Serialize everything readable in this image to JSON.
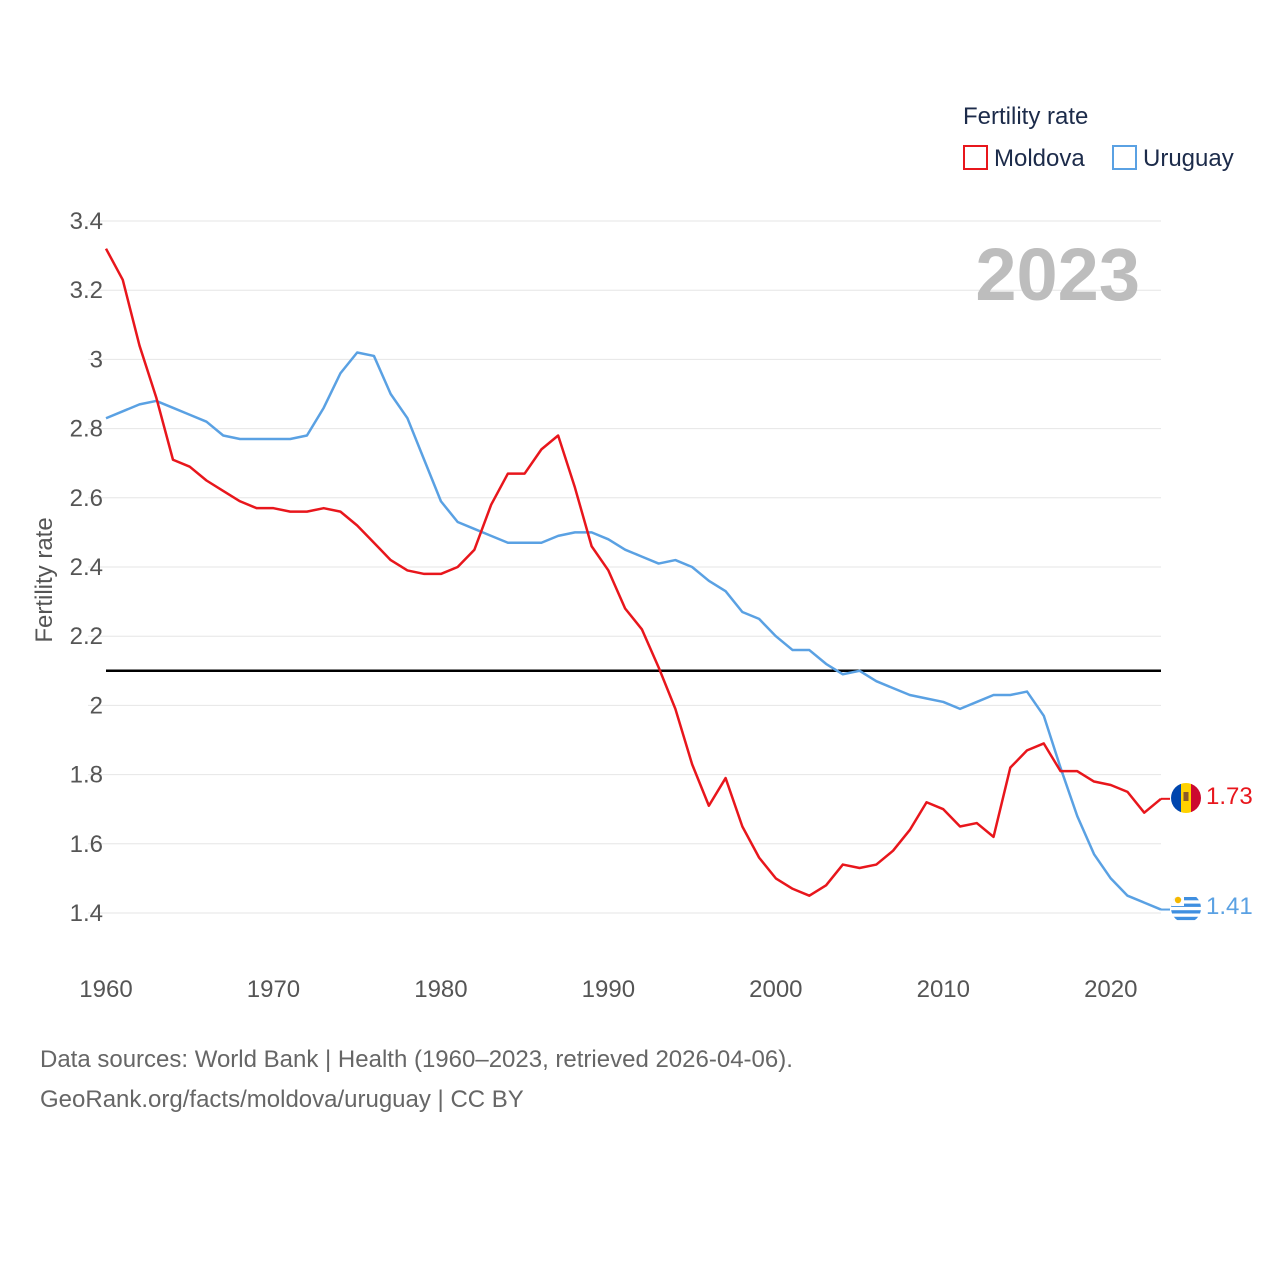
{
  "chart_data": {
    "type": "line",
    "legend_title": "Fertility rate",
    "ylabel": "Fertility rate",
    "xlabel": "",
    "current_year_label": "2023",
    "ylim": [
      1.3,
      3.4
    ],
    "xlim": [
      1960,
      2023
    ],
    "yticks": [
      1.4,
      1.6,
      1.8,
      2,
      2.2,
      2.4,
      2.6,
      2.8,
      3,
      3.2,
      3.4
    ],
    "ytick_labels": [
      "1.4",
      "1.6",
      "1.8",
      "2",
      "2.2",
      "2.4",
      "2.6",
      "2.8",
      "3",
      "3.2",
      "3.4"
    ],
    "xticks": [
      1960,
      1970,
      1980,
      1990,
      2000,
      2010,
      2020
    ],
    "xtick_labels": [
      "1960",
      "1970",
      "1980",
      "1990",
      "2000",
      "2010",
      "2020"
    ],
    "reference_line": {
      "value": 2.1,
      "color": "#000000"
    },
    "x": [
      1960,
      1961,
      1962,
      1963,
      1964,
      1965,
      1966,
      1967,
      1968,
      1969,
      1970,
      1971,
      1972,
      1973,
      1974,
      1975,
      1976,
      1977,
      1978,
      1979,
      1980,
      1981,
      1982,
      1983,
      1984,
      1985,
      1986,
      1987,
      1988,
      1989,
      1990,
      1991,
      1992,
      1993,
      1994,
      1995,
      1996,
      1997,
      1998,
      1999,
      2000,
      2001,
      2002,
      2003,
      2004,
      2005,
      2006,
      2007,
      2008,
      2009,
      2010,
      2011,
      2012,
      2013,
      2014,
      2015,
      2016,
      2017,
      2018,
      2019,
      2020,
      2021,
      2022,
      2023
    ],
    "series": [
      {
        "name": "Moldova",
        "color": "#e8161c",
        "end_label": "1.73",
        "flag": "moldova-flag-icon",
        "values": [
          3.32,
          3.23,
          3.04,
          2.89,
          2.71,
          2.69,
          2.65,
          2.62,
          2.59,
          2.57,
          2.57,
          2.56,
          2.56,
          2.57,
          2.56,
          2.52,
          2.47,
          2.42,
          2.39,
          2.38,
          2.38,
          2.4,
          2.45,
          2.58,
          2.67,
          2.67,
          2.74,
          2.78,
          2.63,
          2.46,
          2.39,
          2.28,
          2.22,
          2.11,
          1.99,
          1.83,
          1.71,
          1.79,
          1.65,
          1.56,
          1.5,
          1.47,
          1.45,
          1.48,
          1.54,
          1.53,
          1.54,
          1.58,
          1.64,
          1.72,
          1.7,
          1.65,
          1.66,
          1.62,
          1.82,
          1.87,
          1.89,
          1.81,
          1.81,
          1.78,
          1.77,
          1.75,
          1.69,
          1.73
        ]
      },
      {
        "name": "Uruguay",
        "color": "#5aa1e3",
        "end_label": "1.41",
        "flag": "uruguay-flag-icon",
        "values": [
          2.83,
          2.85,
          2.87,
          2.88,
          2.86,
          2.84,
          2.82,
          2.78,
          2.77,
          2.77,
          2.77,
          2.77,
          2.78,
          2.86,
          2.96,
          3.02,
          3.01,
          2.9,
          2.83,
          2.71,
          2.59,
          2.53,
          2.51,
          2.49,
          2.47,
          2.47,
          2.47,
          2.49,
          2.5,
          2.5,
          2.48,
          2.45,
          2.43,
          2.41,
          2.42,
          2.4,
          2.36,
          2.33,
          2.27,
          2.25,
          2.2,
          2.16,
          2.16,
          2.12,
          2.09,
          2.1,
          2.07,
          2.05,
          2.03,
          2.02,
          2.01,
          1.99,
          2.01,
          2.03,
          2.03,
          2.04,
          1.97,
          1.82,
          1.68,
          1.57,
          1.5,
          1.45,
          1.43,
          1.41
        ]
      }
    ]
  },
  "footer": {
    "source_line": "Data sources: World Bank | Health (1960–2023, retrieved 2026-04-06).",
    "credit_line": "GeoRank.org/facts/moldova/uruguay | CC BY"
  }
}
